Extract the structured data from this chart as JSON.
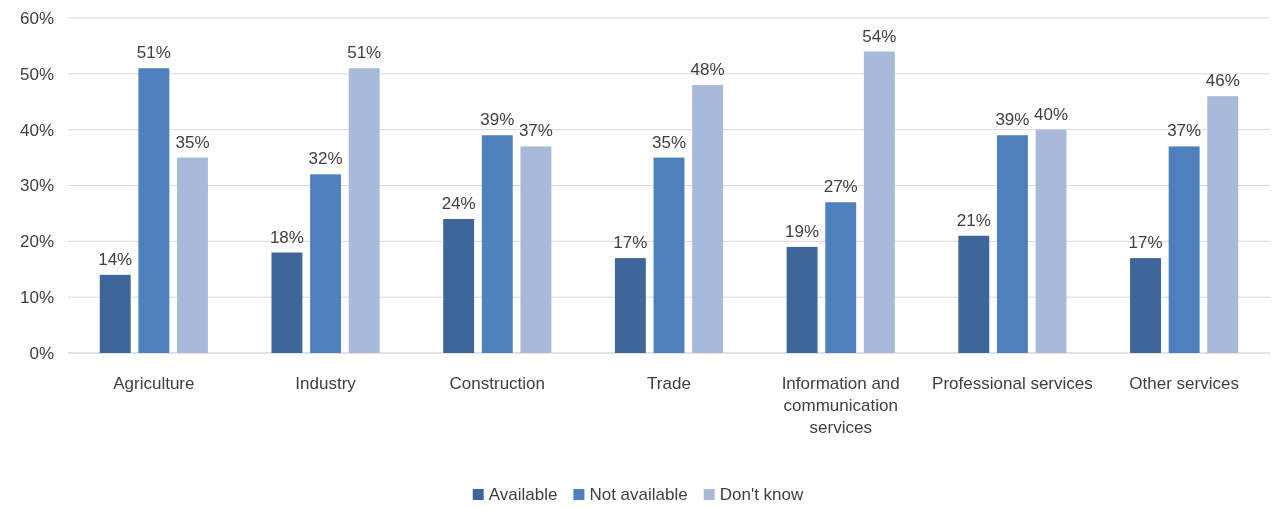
{
  "chart_data": {
    "type": "bar",
    "categories": [
      "Agriculture",
      "Industry",
      "Construction",
      "Trade",
      "Information and communication services",
      "Professional services",
      "Other services"
    ],
    "series": [
      {
        "name": "Available",
        "color": "#3e6699",
        "values": [
          14,
          18,
          24,
          17,
          19,
          21,
          17
        ],
        "value_labels": [
          "14%",
          "18%",
          "24%",
          "17%",
          "19%",
          "21%",
          "17%"
        ]
      },
      {
        "name": "Not available",
        "color": "#4d80bd",
        "values": [
          51,
          32,
          39,
          35,
          27,
          39,
          37
        ],
        "value_labels": [
          "51%",
          "32%",
          "39%",
          "35%",
          "27%",
          "39%",
          "37%"
        ]
      },
      {
        "name": "Don't know",
        "color": "#a9b9d9",
        "values": [
          35,
          51,
          37,
          48,
          54,
          40,
          46
        ],
        "value_labels": [
          "35%",
          "51%",
          "37%",
          "48%",
          "54%",
          "40%",
          "46%"
        ]
      }
    ],
    "ylim": [
      0,
      60
    ],
    "yticks": [
      {
        "value": 0,
        "label": "0%"
      },
      {
        "value": 10,
        "label": "10%"
      },
      {
        "value": 20,
        "label": "20%"
      },
      {
        "value": 30,
        "label": "30%"
      },
      {
        "value": 40,
        "label": "40%"
      },
      {
        "value": 50,
        "label": "50%"
      },
      {
        "value": 60,
        "label": "60%"
      }
    ],
    "grid": "y",
    "legend": "bottom"
  }
}
